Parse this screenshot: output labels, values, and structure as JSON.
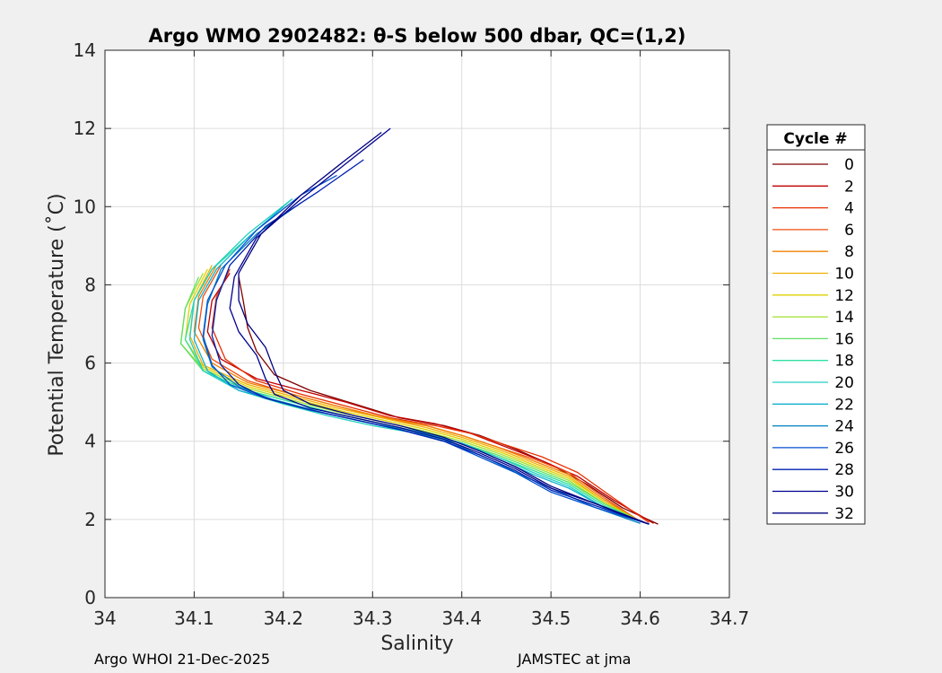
{
  "chart_data": {
    "type": "line",
    "title": "Argo WMO 2902482: θ-S below 500 dbar,  QC=(1,2)",
    "xlabel": "Salinity",
    "ylabel": "Potential Temperature (˚C)",
    "xlim": [
      34.0,
      34.7
    ],
    "ylim": [
      0,
      14
    ],
    "x_ticks": [
      "34",
      "34.1",
      "34.2",
      "34.3",
      "34.4",
      "34.5",
      "34.6",
      "34.7"
    ],
    "y_ticks": [
      "0",
      "2",
      "4",
      "6",
      "8",
      "10",
      "12",
      "14"
    ],
    "grid": true,
    "legend": {
      "title": "Cycle #",
      "placement": "right",
      "entries": [
        "0",
        "2",
        "4",
        "6",
        "8",
        "10",
        "12",
        "14",
        "16",
        "18",
        "20",
        "22",
        "24",
        "26",
        "28",
        "30",
        "32"
      ],
      "colors": [
        "#800000",
        "#c00000",
        "#e83000",
        "#f05010",
        "#f08000",
        "#f0b000",
        "#e0d000",
        "#a0e030",
        "#60e060",
        "#30e0a0",
        "#20d0c0",
        "#10b0d0",
        "#0080c0",
        "#0050d0",
        "#0020b0",
        "#000090",
        "#000080"
      ]
    },
    "series": [
      {
        "name": "0",
        "color": "#800000",
        "x": [
          34.62,
          34.58,
          34.54,
          34.5,
          34.46,
          34.42,
          34.38,
          34.33,
          34.28,
          34.23,
          34.19,
          34.17,
          34.16,
          34.155,
          34.15
        ],
        "y": [
          1.88,
          2.3,
          2.9,
          3.4,
          3.8,
          4.15,
          4.4,
          4.6,
          4.95,
          5.3,
          5.7,
          6.3,
          6.9,
          7.6,
          8.2
        ]
      },
      {
        "name": "2",
        "color": "#c00000",
        "x": [
          34.615,
          34.57,
          34.53,
          34.49,
          34.45,
          34.41,
          34.37,
          34.32,
          34.27,
          34.22,
          34.17,
          34.13,
          34.115,
          34.12,
          34.14
        ],
        "y": [
          1.9,
          2.5,
          3.1,
          3.5,
          3.85,
          4.2,
          4.45,
          4.65,
          5.0,
          5.3,
          5.6,
          6.1,
          6.8,
          7.6,
          8.3
        ]
      },
      {
        "name": "4",
        "color": "#e83000",
        "x": [
          34.61,
          34.57,
          34.53,
          34.49,
          34.45,
          34.41,
          34.37,
          34.32,
          34.27,
          34.22,
          34.17,
          34.135,
          34.12,
          34.125,
          34.14
        ],
        "y": [
          1.92,
          2.55,
          3.2,
          3.6,
          3.9,
          4.2,
          4.4,
          4.6,
          4.9,
          5.2,
          5.55,
          6.1,
          6.9,
          7.7,
          8.4
        ]
      },
      {
        "name": "6",
        "color": "#f05010",
        "x": [
          34.6,
          34.56,
          34.52,
          34.48,
          34.44,
          34.4,
          34.36,
          34.31,
          34.26,
          34.21,
          34.16,
          34.12,
          34.105,
          34.11,
          34.13
        ],
        "y": [
          1.95,
          2.55,
          3.2,
          3.55,
          3.85,
          4.15,
          4.4,
          4.6,
          4.9,
          5.2,
          5.55,
          6.1,
          6.9,
          7.7,
          8.5
        ]
      },
      {
        "name": "8",
        "color": "#f08000",
        "x": [
          34.6,
          34.56,
          34.52,
          34.48,
          34.44,
          34.4,
          34.36,
          34.31,
          34.26,
          34.21,
          34.16,
          34.12,
          34.1,
          34.105,
          34.125
        ],
        "y": [
          1.95,
          2.5,
          3.15,
          3.5,
          3.85,
          4.15,
          4.4,
          4.62,
          4.9,
          5.2,
          5.5,
          6.0,
          6.8,
          7.7,
          8.5
        ]
      },
      {
        "name": "10",
        "color": "#f0b000",
        "x": [
          34.6,
          34.56,
          34.52,
          34.48,
          34.44,
          34.4,
          34.36,
          34.31,
          34.26,
          34.21,
          34.16,
          34.11,
          34.095,
          34.1,
          34.12
        ],
        "y": [
          1.95,
          2.45,
          3.1,
          3.45,
          3.8,
          4.1,
          4.35,
          4.6,
          4.85,
          5.15,
          5.45,
          5.95,
          6.7,
          7.6,
          8.5
        ]
      },
      {
        "name": "12",
        "color": "#e0d000",
        "x": [
          34.6,
          34.56,
          34.52,
          34.48,
          34.44,
          34.4,
          34.36,
          34.31,
          34.26,
          34.21,
          34.16,
          34.11,
          34.09,
          34.095,
          34.115
        ],
        "y": [
          1.95,
          2.45,
          3.05,
          3.4,
          3.75,
          4.05,
          4.3,
          4.55,
          4.8,
          5.1,
          5.4,
          5.9,
          6.6,
          7.5,
          8.4
        ]
      },
      {
        "name": "14",
        "color": "#a0e030",
        "x": [
          34.6,
          34.56,
          34.52,
          34.48,
          34.44,
          34.4,
          34.36,
          34.31,
          34.26,
          34.21,
          34.16,
          34.11,
          34.085,
          34.09,
          34.11
        ],
        "y": [
          1.95,
          2.4,
          3.0,
          3.35,
          3.7,
          4.0,
          4.25,
          4.5,
          4.75,
          5.05,
          5.35,
          5.85,
          6.5,
          7.4,
          8.3
        ]
      },
      {
        "name": "16",
        "color": "#60e060",
        "x": [
          34.6,
          34.56,
          34.52,
          34.48,
          34.44,
          34.4,
          34.36,
          34.31,
          34.26,
          34.21,
          34.16,
          34.11,
          34.085,
          34.09,
          34.105
        ],
        "y": [
          1.95,
          2.4,
          2.95,
          3.3,
          3.65,
          3.95,
          4.2,
          4.45,
          4.7,
          5.0,
          5.3,
          5.8,
          6.5,
          7.4,
          8.2
        ]
      },
      {
        "name": "18",
        "color": "#30e0a0",
        "x": [
          34.6,
          34.56,
          34.52,
          34.48,
          34.44,
          34.4,
          34.36,
          34.31,
          34.26,
          34.21,
          34.16,
          34.11,
          34.09,
          34.1,
          34.12,
          34.16,
          34.21
        ],
        "y": [
          1.95,
          2.35,
          2.9,
          3.25,
          3.6,
          3.95,
          4.2,
          4.45,
          4.7,
          5.0,
          5.3,
          5.8,
          6.6,
          7.6,
          8.4,
          9.2,
          10.2
        ]
      },
      {
        "name": "20",
        "color": "#20d0c0",
        "x": [
          34.6,
          34.56,
          34.52,
          34.48,
          34.44,
          34.4,
          34.35,
          34.3,
          34.25,
          34.2,
          34.15,
          34.11,
          34.095,
          34.1,
          34.12,
          34.16,
          34.21
        ],
        "y": [
          1.95,
          2.3,
          2.85,
          3.2,
          3.6,
          3.95,
          4.2,
          4.4,
          4.65,
          4.95,
          5.3,
          5.8,
          6.6,
          7.6,
          8.4,
          9.3,
          10.2
        ]
      },
      {
        "name": "22",
        "color": "#10b0d0",
        "x": [
          34.6,
          34.56,
          34.52,
          34.48,
          34.44,
          34.4,
          34.35,
          34.3,
          34.25,
          34.2,
          34.15,
          34.115,
          34.1,
          34.105,
          34.125,
          34.16,
          34.2
        ],
        "y": [
          1.95,
          2.3,
          2.8,
          3.15,
          3.55,
          3.95,
          4.25,
          4.45,
          4.7,
          5.0,
          5.3,
          5.8,
          6.6,
          7.6,
          8.4,
          9.2,
          10.0
        ]
      },
      {
        "name": "24",
        "color": "#0080c0",
        "x": [
          34.6,
          34.55,
          34.51,
          34.47,
          34.43,
          34.39,
          34.34,
          34.29,
          34.24,
          34.19,
          34.15,
          34.12,
          34.11,
          34.115,
          34.13,
          34.17,
          34.22
        ],
        "y": [
          1.9,
          2.3,
          2.7,
          3.1,
          3.55,
          3.95,
          4.25,
          4.5,
          4.75,
          5.05,
          5.4,
          5.9,
          6.6,
          7.5,
          8.4,
          9.3,
          10.1
        ]
      },
      {
        "name": "26",
        "color": "#0050d0",
        "x": [
          34.61,
          34.55,
          34.5,
          34.46,
          34.42,
          34.38,
          34.33,
          34.28,
          34.23,
          34.18,
          34.14,
          34.12,
          34.11,
          34.115,
          34.135,
          34.17,
          34.22,
          34.26
        ],
        "y": [
          1.88,
          2.3,
          2.7,
          3.2,
          3.6,
          4.0,
          4.3,
          4.55,
          4.8,
          5.1,
          5.45,
          5.95,
          6.7,
          7.6,
          8.5,
          9.4,
          10.3,
          10.8
        ]
      },
      {
        "name": "28",
        "color": "#0020b0",
        "x": [
          34.61,
          34.55,
          34.5,
          34.46,
          34.42,
          34.38,
          34.33,
          34.28,
          34.23,
          34.18,
          34.15,
          34.13,
          34.12,
          34.125,
          34.14,
          34.18,
          34.24,
          34.29
        ],
        "y": [
          1.88,
          2.35,
          2.75,
          3.25,
          3.65,
          4.0,
          4.3,
          4.55,
          4.8,
          5.1,
          5.45,
          5.95,
          6.7,
          7.6,
          8.5,
          9.5,
          10.4,
          11.2
        ]
      },
      {
        "name": "30",
        "color": "#000090",
        "x": [
          34.61,
          34.55,
          34.5,
          34.46,
          34.42,
          34.38,
          34.33,
          34.28,
          34.23,
          34.19,
          34.18,
          34.17,
          34.15,
          34.14,
          34.145,
          34.17,
          34.22,
          34.27,
          34.32
        ],
        "y": [
          1.88,
          2.4,
          2.8,
          3.3,
          3.7,
          4.05,
          4.35,
          4.6,
          4.85,
          5.2,
          5.6,
          6.2,
          6.8,
          7.4,
          8.2,
          9.2,
          10.2,
          11.1,
          12.0
        ]
      },
      {
        "name": "32",
        "color": "#000080",
        "x": [
          34.61,
          34.55,
          34.5,
          34.46,
          34.42,
          34.38,
          34.33,
          34.28,
          34.23,
          34.2,
          34.19,
          34.18,
          34.16,
          34.15,
          34.15,
          34.175,
          34.22,
          34.27,
          34.31
        ],
        "y": [
          1.88,
          2.4,
          2.85,
          3.35,
          3.75,
          4.1,
          4.4,
          4.65,
          4.95,
          5.3,
          5.8,
          6.4,
          7.0,
          7.6,
          8.3,
          9.3,
          10.3,
          11.2,
          11.9
        ]
      }
    ]
  },
  "footer": {
    "left": "Argo WHOI 21-Dec-2025",
    "right": "JAMSTEC at jma"
  }
}
